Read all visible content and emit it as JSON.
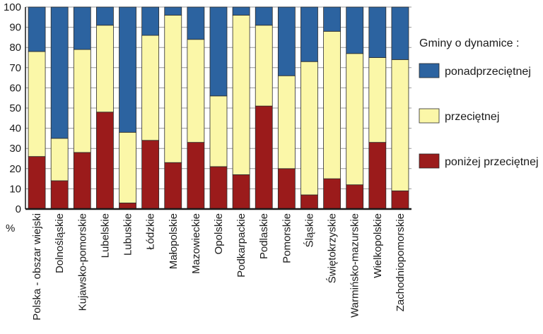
{
  "chart_data": {
    "type": "bar",
    "stacked": true,
    "title": "",
    "xlabel": "",
    "ylabel": "%",
    "ylim": [
      0,
      100
    ],
    "yticks": [
      0,
      10,
      20,
      30,
      40,
      50,
      60,
      70,
      80,
      90,
      100
    ],
    "grid": true,
    "legend_title": "Gminy o dynamice :",
    "legend_position": "right",
    "categories": [
      "Polska - obszar wiejski",
      "Dolnośląskie",
      "Kujawsko-pomorskie",
      "Lubelskie",
      "Lubuskie",
      "Łódzkie",
      "Małopolskie",
      "Mazowieckie",
      "Opolskie",
      "Podkarpackie",
      "Podlaskie",
      "Pomorskie",
      "Śląskie",
      "Świętokrzyskie",
      "Warmińsko-mazurskie",
      "Wielkopolskie",
      "Zachodniopomorskie"
    ],
    "series": [
      {
        "name": "poniżej przeciętnej",
        "color": "#9b1b1b",
        "values": [
          26,
          14,
          28,
          48,
          3,
          34,
          23,
          33,
          21,
          17,
          51,
          20,
          7,
          15,
          12,
          33,
          9
        ]
      },
      {
        "name": "przeciętnej",
        "color": "#fbf7a8",
        "values": [
          52,
          21,
          51,
          43,
          35,
          52,
          73,
          51,
          35,
          79,
          40,
          46,
          66,
          73,
          65,
          42,
          65
        ]
      },
      {
        "name": "ponadprzeciętnej",
        "color": "#2c63a0",
        "values": [
          22,
          65,
          21,
          9,
          62,
          14,
          4,
          16,
          44,
          4,
          9,
          34,
          27,
          12,
          23,
          25,
          26
        ]
      }
    ],
    "legend_order": [
      "ponadprzeciętnej",
      "przeciętnej",
      "poniżej przeciętnej"
    ]
  }
}
